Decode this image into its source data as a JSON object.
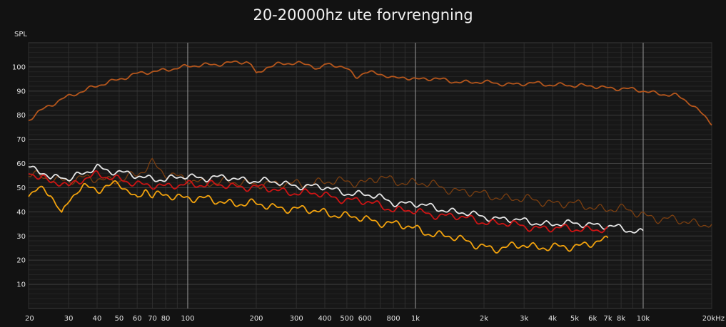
{
  "chart_data": {
    "type": "line",
    "title": "20-20000hz ute forvrengning",
    "ylabel": "SPL",
    "xlabel": "",
    "x_scale": "log",
    "xlim": [
      20,
      20000
    ],
    "ylim": [
      0,
      110
    ],
    "grid": true,
    "y_ticks": [
      {
        "value": 10,
        "label": "10"
      },
      {
        "value": 20,
        "label": "20"
      },
      {
        "value": 30,
        "label": "30"
      },
      {
        "value": 40,
        "label": "40"
      },
      {
        "value": 50,
        "label": "50"
      },
      {
        "value": 60,
        "label": "60"
      },
      {
        "value": 70,
        "label": "70"
      },
      {
        "value": 80,
        "label": "80"
      },
      {
        "value": 90,
        "label": "90"
      },
      {
        "value": 100,
        "label": "100"
      }
    ],
    "x_ticks": [
      {
        "value": 20,
        "label": "20"
      },
      {
        "value": 30,
        "label": "30"
      },
      {
        "value": 40,
        "label": "40"
      },
      {
        "value": 50,
        "label": "50"
      },
      {
        "value": 60,
        "label": "60"
      },
      {
        "value": 70,
        "label": "70"
      },
      {
        "value": 80,
        "label": "80"
      },
      {
        "value": 100,
        "label": "100"
      },
      {
        "value": 200,
        "label": "200"
      },
      {
        "value": 300,
        "label": "300"
      },
      {
        "value": 400,
        "label": "400"
      },
      {
        "value": 500,
        "label": "500"
      },
      {
        "value": 600,
        "label": "600"
      },
      {
        "value": 800,
        "label": "800"
      },
      {
        "value": 1000,
        "label": "1k"
      },
      {
        "value": 2000,
        "label": "2k"
      },
      {
        "value": 3000,
        "label": "3k"
      },
      {
        "value": 4000,
        "label": "4k"
      },
      {
        "value": 5000,
        "label": "5k"
      },
      {
        "value": 6000,
        "label": "6k"
      },
      {
        "value": 7000,
        "label": "7k"
      },
      {
        "value": 8000,
        "label": "8k"
      },
      {
        "value": 10000,
        "label": "10k"
      },
      {
        "value": 20000,
        "label": "20kHz"
      }
    ],
    "series": [
      {
        "color": "#b5561c",
        "x": [
          20,
          22,
          25,
          28,
          30,
          35,
          40,
          45,
          50,
          60,
          70,
          80,
          100,
          120,
          150,
          180,
          190,
          200,
          220,
          250,
          300,
          350,
          380,
          400,
          450,
          500,
          550,
          600,
          700,
          800,
          900,
          1000,
          1200,
          1500,
          2000,
          2500,
          3000,
          3500,
          4000,
          4500,
          5000,
          6000,
          7000,
          8000,
          9000,
          10000,
          12000,
          14000,
          16000,
          18000,
          20000
        ],
        "y": [
          78,
          81,
          84,
          87,
          88,
          90,
          92,
          94,
          95,
          97,
          98,
          99,
          100,
          101,
          101.5,
          102,
          101,
          97,
          100,
          101,
          101.5,
          101,
          99,
          101,
          100.5,
          99,
          96,
          98,
          97,
          95,
          96,
          95,
          95,
          94,
          93.5,
          93,
          93,
          93,
          92.5,
          93,
          92,
          92,
          91.5,
          91,
          90.5,
          90,
          89,
          88,
          85,
          81,
          77
        ]
      },
      {
        "color": "#7a3e10",
        "x": [
          20,
          25,
          30,
          40,
          50,
          60,
          65,
          70,
          75,
          80,
          90,
          100,
          150,
          200,
          250,
          300,
          400,
          500,
          600,
          700,
          800,
          1000,
          1200,
          1500,
          2000,
          2500,
          3000,
          4000,
          5000,
          6000,
          8000,
          10000,
          12000,
          15000,
          20000
        ],
        "y": [
          55,
          54,
          53,
          54,
          53,
          55,
          58,
          61,
          58,
          56,
          54,
          53,
          52,
          52,
          51,
          52,
          52,
          53,
          52,
          54,
          53,
          52,
          51,
          49,
          47,
          46,
          45,
          44,
          43,
          42,
          41,
          39,
          37,
          36,
          35
        ]
      },
      {
        "color": "#e6e6e6",
        "x": [
          20,
          23,
          25,
          28,
          30,
          35,
          40,
          45,
          50,
          60,
          70,
          80,
          100,
          120,
          150,
          200,
          250,
          300,
          400,
          500,
          600,
          700,
          800,
          1000,
          1200,
          1500,
          2000,
          2500,
          3000,
          4000,
          5000,
          6000,
          7000,
          8000,
          9000,
          10000
        ],
        "y": [
          58,
          57,
          54,
          55,
          53,
          56,
          59,
          57,
          56,
          55,
          54,
          53,
          55,
          54,
          54,
          53,
          52,
          51,
          50,
          48,
          47,
          46,
          44,
          43,
          42,
          40,
          38,
          37,
          36,
          35,
          35,
          35,
          34,
          33,
          32,
          32
        ]
      },
      {
        "color": "#cc1414",
        "x": [
          20,
          23,
          25,
          28,
          30,
          35,
          40,
          45,
          50,
          60,
          70,
          80,
          100,
          120,
          150,
          200,
          250,
          300,
          400,
          500,
          600,
          700,
          800,
          1000,
          1200,
          1500,
          2000,
          2500,
          3000,
          4000,
          5000,
          6000,
          7000
        ],
        "y": [
          56,
          55,
          52,
          52,
          50,
          54,
          56,
          54,
          53,
          52,
          51,
          50,
          52,
          51,
          51,
          50,
          49,
          48,
          47,
          45,
          44,
          43,
          41,
          40,
          39,
          38,
          36,
          35,
          34,
          33,
          33,
          33,
          32
        ]
      },
      {
        "color": "#f2a20d",
        "x": [
          20,
          22,
          25,
          27,
          28,
          30,
          33,
          35,
          40,
          45,
          50,
          55,
          60,
          65,
          70,
          80,
          100,
          120,
          150,
          200,
          250,
          300,
          400,
          500,
          600,
          800,
          1000,
          1200,
          1500,
          2000,
          2200,
          2500,
          3000,
          3500,
          4000,
          5000,
          6000,
          7000
        ],
        "y": [
          48,
          50,
          47,
          42,
          38,
          44,
          50,
          51,
          49,
          50,
          52,
          49,
          45,
          50,
          46,
          47,
          46,
          45,
          44,
          43,
          42,
          41,
          40,
          38,
          37,
          35,
          33,
          31,
          29,
          26,
          24,
          25,
          27,
          25,
          25,
          26,
          27,
          28
        ]
      }
    ]
  }
}
